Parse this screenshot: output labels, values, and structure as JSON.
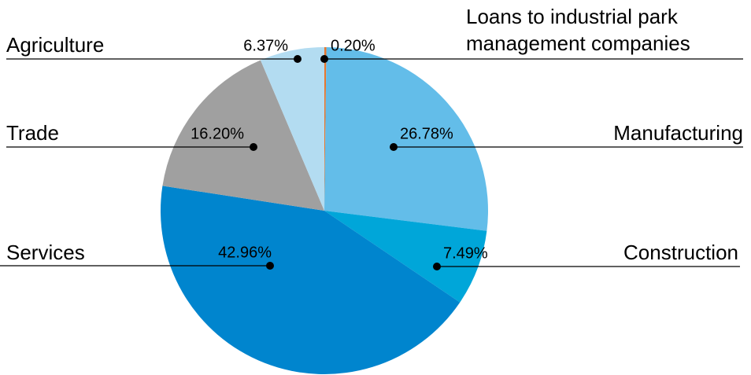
{
  "chart_data": {
    "type": "pie",
    "categories": [
      "Loans to industrial park management companies",
      "Manufacturing",
      "Construction",
      "Services",
      "Trade",
      "Agriculture"
    ],
    "values": [
      0.2,
      26.78,
      7.49,
      42.96,
      16.2,
      6.37
    ],
    "value_labels": [
      "0.20%",
      "26.78%",
      "7.49%",
      "42.96%",
      "16.20%",
      "6.37%"
    ],
    "colors": [
      "#e8772e",
      "#63bde9",
      "#00a6d9",
      "#0085ce",
      "#a0a0a0",
      "#b3dcf1"
    ]
  }
}
